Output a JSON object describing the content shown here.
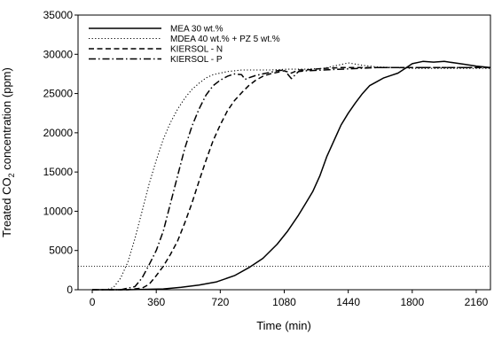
{
  "chart_data": {
    "type": "line",
    "title": "",
    "xlabel": "Time (min)",
    "ylabel": "Treated CO2 concentration (ppm)",
    "ylabel_parts": {
      "before": "Treated CO",
      "sub": "2",
      "after": " concentration (ppm)"
    },
    "xlim": [
      -80,
      2240
    ],
    "ylim": [
      0,
      35000
    ],
    "xticks": [
      0,
      360,
      720,
      1080,
      1440,
      1800,
      2160
    ],
    "yticks": [
      0,
      5000,
      10000,
      15000,
      20000,
      25000,
      30000,
      35000
    ],
    "grid": false,
    "legend_position": "top-left",
    "reference_line": {
      "y": 3000,
      "style": "dotted"
    },
    "series": [
      {
        "name": "MEA 30 wt.%",
        "style": "solid",
        "x": [
          0,
          200,
          400,
          500,
          600,
          700,
          800,
          880,
          960,
          1040,
          1100,
          1160,
          1200,
          1240,
          1280,
          1320,
          1360,
          1400,
          1440,
          1480,
          1520,
          1560,
          1600,
          1640,
          1680,
          1720,
          1760,
          1800,
          1860,
          1920,
          1980,
          2040,
          2100,
          2160,
          2240
        ],
        "y": [
          0,
          0,
          100,
          300,
          600,
          1000,
          1800,
          2800,
          4000,
          5800,
          7500,
          9500,
          11000,
          12500,
          14500,
          17000,
          19000,
          21000,
          22500,
          23800,
          25000,
          26000,
          26500,
          27000,
          27300,
          27600,
          28200,
          28800,
          29100,
          29000,
          29100,
          28900,
          28700,
          28500,
          28300
        ]
      },
      {
        "name": "MDEA 40 wt.% + PZ 5 wt.%",
        "style": "dotted",
        "x": [
          0,
          80,
          120,
          160,
          200,
          240,
          280,
          320,
          360,
          400,
          440,
          480,
          520,
          560,
          600,
          640,
          680,
          720,
          760,
          800,
          840,
          900,
          1000,
          1100,
          1200,
          1300,
          1440,
          1520,
          1600,
          1700,
          1800,
          1900,
          2000,
          2100,
          2240
        ],
        "y": [
          0,
          0,
          300,
          1500,
          3500,
          6500,
          10000,
          13500,
          16500,
          19200,
          21300,
          23000,
          24400,
          25500,
          26300,
          27000,
          27400,
          27600,
          27800,
          27900,
          28000,
          28000,
          28000,
          28100,
          28100,
          28200,
          28900,
          28600,
          28400,
          28300,
          28200,
          28200,
          28200,
          28200,
          28200
        ]
      },
      {
        "name": "KIERSOL - N",
        "style": "dashed",
        "x": [
          0,
          200,
          280,
          320,
          360,
          400,
          440,
          480,
          520,
          560,
          600,
          640,
          680,
          720,
          760,
          800,
          840,
          880,
          920,
          960,
          1000,
          1040,
          1080,
          1120,
          1160,
          1200,
          1300,
          1400,
          1500,
          1600,
          1800,
          2000,
          2240
        ],
        "y": [
          0,
          0,
          200,
          700,
          1800,
          3000,
          4500,
          6200,
          8500,
          11000,
          13800,
          16500,
          19000,
          21000,
          22800,
          24100,
          25100,
          26000,
          26700,
          27200,
          27500,
          27700,
          27900,
          27600,
          28000,
          28000,
          28200,
          28300,
          28300,
          28300,
          28300,
          28300,
          28300
        ]
      },
      {
        "name": "KIERSOL - P",
        "style": "dashdot",
        "x": [
          0,
          160,
          240,
          280,
          320,
          360,
          400,
          440,
          480,
          520,
          560,
          600,
          640,
          680,
          720,
          760,
          800,
          840,
          860,
          880,
          920,
          960,
          1000,
          1040,
          1080,
          1120,
          1160,
          1200,
          1300,
          1400,
          1500,
          1600,
          1800,
          2000,
          2240
        ],
        "y": [
          0,
          0,
          400,
          1500,
          3200,
          5000,
          7500,
          11000,
          14500,
          18000,
          20800,
          23000,
          24800,
          26000,
          26700,
          27200,
          27500,
          27400,
          26800,
          27000,
          27300,
          27500,
          27700,
          27900,
          28000,
          26900,
          27800,
          27900,
          28000,
          28100,
          28200,
          28300,
          28300,
          28300,
          28300
        ]
      }
    ]
  }
}
